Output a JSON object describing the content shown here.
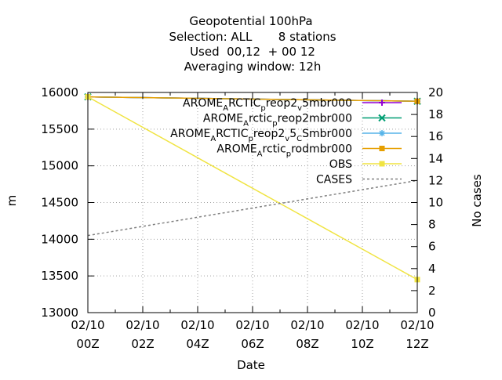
{
  "chart_data": {
    "type": "line",
    "title_lines": [
      "Geopotential 100hPa",
      "Selection: ALL       8 stations",
      "Used  00,12  + 00 12",
      "Averaging window: 12h"
    ],
    "xlabel": "Date",
    "ylabel": "m",
    "y2label": "No cases",
    "x_ticks": [
      {
        "x": 0,
        "line1": "02/10",
        "line2": "00Z"
      },
      {
        "x": 2,
        "line1": "02/10",
        "line2": "02Z"
      },
      {
        "x": 4,
        "line1": "02/10",
        "line2": "04Z"
      },
      {
        "x": 6,
        "line1": "02/10",
        "line2": "06Z"
      },
      {
        "x": 8,
        "line1": "02/10",
        "line2": "08Z"
      },
      {
        "x": 10,
        "line1": "02/10",
        "line2": "10Z"
      },
      {
        "x": 12,
        "line1": "02/10",
        "line2": "12Z"
      }
    ],
    "xlim": [
      0,
      12
    ],
    "ylim": [
      13000,
      16000
    ],
    "y_ticks": [
      13000,
      13500,
      14000,
      14500,
      15000,
      15500,
      16000
    ],
    "y2lim": [
      0,
      20
    ],
    "y2_ticks": [
      0,
      2,
      4,
      6,
      8,
      10,
      12,
      14,
      16,
      18,
      20
    ],
    "grid": true,
    "legend_position": "top-right",
    "series": [
      {
        "name": "AROME_ARCTIC_preop2_v5mbr000",
        "label_parts": [
          [
            "AROME",
            ""
          ],
          [
            "A",
            "sub"
          ],
          [
            "RCTIC",
            ""
          ],
          [
            "p",
            "sub"
          ],
          [
            "reop2",
            ""
          ],
          [
            "v",
            "sub"
          ],
          [
            "5mbr000",
            ""
          ]
        ],
        "color": "#9400d3",
        "marker": "plus",
        "axis": "y",
        "x": [
          0,
          12
        ],
        "y": [
          15940,
          15880
        ]
      },
      {
        "name": "AROME_Arctic_preop2mbr000",
        "label_parts": [
          [
            "AROME",
            ""
          ],
          [
            "A",
            "sub"
          ],
          [
            "rctic",
            ""
          ],
          [
            "p",
            "sub"
          ],
          [
            "reop2mbr000",
            ""
          ]
        ],
        "color": "#009e73",
        "marker": "cross",
        "axis": "y",
        "x": [
          0,
          12
        ],
        "y": [
          15940,
          15880
        ]
      },
      {
        "name": "AROME_ARCTIC_preop2_v5_CSmbr000",
        "label_parts": [
          [
            "AROME",
            ""
          ],
          [
            "A",
            "sub"
          ],
          [
            "RCTIC",
            ""
          ],
          [
            "p",
            "sub"
          ],
          [
            "reop2",
            ""
          ],
          [
            "v",
            "sub"
          ],
          [
            "5",
            ""
          ],
          [
            "C",
            "sub"
          ],
          [
            "Smbr000",
            ""
          ]
        ],
        "color": "#56b4e9",
        "marker": "star",
        "axis": "y",
        "x": [
          0,
          12
        ],
        "y": [
          15940,
          15880
        ]
      },
      {
        "name": "AROME_Arctic_prodmbr000",
        "label_parts": [
          [
            "AROME",
            ""
          ],
          [
            "A",
            "sub"
          ],
          [
            "rctic",
            ""
          ],
          [
            "p",
            "sub"
          ],
          [
            "rodmbr000",
            ""
          ]
        ],
        "color": "#e69f00",
        "marker": "square",
        "axis": "y",
        "x": [
          0,
          12
        ],
        "y": [
          15940,
          15880
        ]
      },
      {
        "name": "OBS",
        "label_parts": [
          [
            "OBS",
            ""
          ]
        ],
        "color": "#f0e442",
        "marker": "square",
        "axis": "y",
        "x": [
          0,
          12
        ],
        "y": [
          15940,
          13450
        ]
      },
      {
        "name": "CASES",
        "label_parts": [
          [
            "CASES",
            ""
          ]
        ],
        "color": "#808080",
        "marker": "none",
        "dashed": true,
        "axis": "y2",
        "x": [
          0,
          12
        ],
        "y": [
          7,
          12
        ]
      }
    ]
  }
}
